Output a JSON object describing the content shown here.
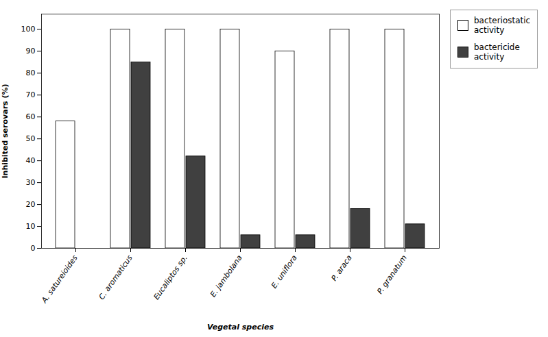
{
  "chart_data": {
    "type": "bar",
    "categories": [
      "A. satureioides",
      "C. aromaticus",
      "Eucaliptos sp.",
      "E. jambolana",
      "E. uniflora",
      "P. araca",
      "P. granatum"
    ],
    "series": [
      {
        "name": "bacteriostatic\nactivity",
        "color": "#ffffff",
        "values": [
          58,
          100,
          100,
          100,
          90,
          100,
          100
        ]
      },
      {
        "name": "bactericide\nactivity",
        "color": "#404040",
        "values": [
          0,
          85,
          42,
          6,
          6,
          18,
          11
        ]
      }
    ],
    "xlabel": "Vegetal species",
    "ylabel": "Inhibited serovars (%)",
    "ylim": [
      0,
      107
    ],
    "yticks": [
      0,
      10,
      20,
      30,
      40,
      50,
      60,
      70,
      80,
      90,
      100
    ],
    "legend": "upper right",
    "grid": false
  }
}
